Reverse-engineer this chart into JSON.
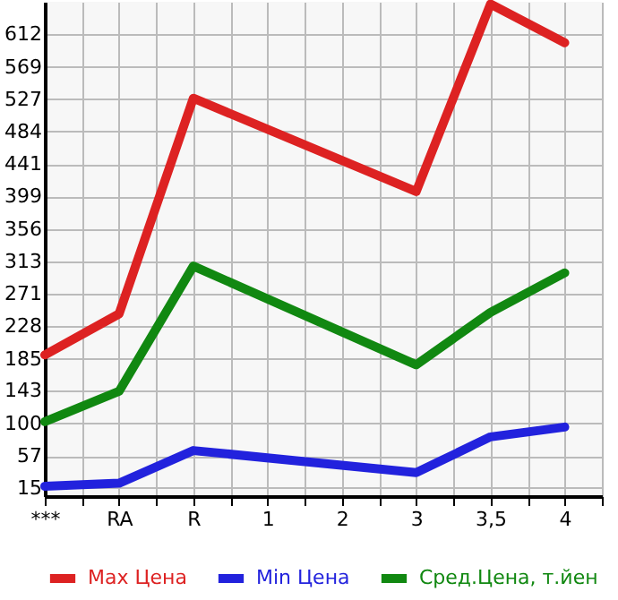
{
  "chart_data": {
    "type": "line",
    "categories": [
      "***",
      "RA",
      "R",
      "1",
      "2",
      "3",
      "3,5",
      "4"
    ],
    "series": [
      {
        "name": "Max Цена",
        "color": "#dd2222",
        "values": [
          190,
          244,
          528,
          null,
          null,
          405,
          652,
          601
        ]
      },
      {
        "name": "Min Цена",
        "color": "#2222dd",
        "values": [
          17,
          21,
          64,
          null,
          null,
          35,
          82,
          95
        ]
      },
      {
        "name": "Сред.Цена, т.йен",
        "color": "#118811",
        "values": [
          102,
          142,
          307,
          null,
          null,
          177,
          246,
          298
        ]
      }
    ],
    "ylim": [
      4,
      655
    ],
    "yticks": [
      15,
      57,
      100,
      143,
      185,
      228,
      271,
      313,
      356,
      399,
      441,
      484,
      527,
      569,
      612
    ],
    "grid": true,
    "legend": "bottom",
    "marker": "none",
    "line_style": "solid"
  }
}
